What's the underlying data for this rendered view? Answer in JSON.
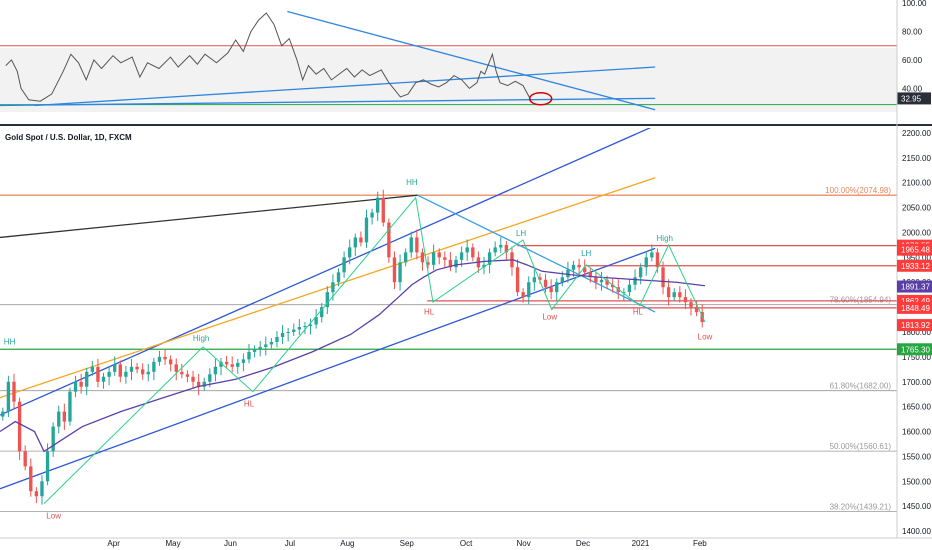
{
  "chart_data": [
    {
      "type": "line",
      "panel": "oscillator",
      "title": "",
      "ylim": [
        22,
        100
      ],
      "y_ticks": [
        {
          "label": "100.00",
          "v": 100
        },
        {
          "label": "80.00",
          "v": 80
        },
        {
          "label": "60.00",
          "v": 60
        },
        {
          "label": "40.00",
          "v": 40
        }
      ],
      "current_value": "32.95",
      "reference_levels": [
        70,
        30
      ],
      "series": [
        {
          "points": [
            [
              0,
              56
            ],
            [
              3,
              60
            ],
            [
              6,
              52
            ],
            [
              8,
              40
            ],
            [
              12,
              32
            ],
            [
              18,
              31
            ],
            [
              24,
              36
            ],
            [
              30,
              52
            ],
            [
              34,
              64
            ],
            [
              38,
              58
            ],
            [
              42,
              46
            ],
            [
              46,
              60
            ],
            [
              50,
              54
            ],
            [
              56,
              63
            ],
            [
              60,
              58
            ],
            [
              66,
              62
            ],
            [
              70,
              48
            ],
            [
              74,
              58
            ],
            [
              80,
              54
            ],
            [
              86,
              62
            ],
            [
              90,
              55
            ],
            [
              96,
              63
            ],
            [
              100,
              57
            ],
            [
              104,
              64
            ],
            [
              110,
              58
            ],
            [
              116,
              65
            ],
            [
              120,
              74
            ],
            [
              124,
              66
            ],
            [
              128,
              80
            ],
            [
              132,
              88
            ],
            [
              136,
              93
            ],
            [
              140,
              85
            ],
            [
              144,
              70
            ],
            [
              148,
              75
            ],
            [
              152,
              60
            ],
            [
              155,
              46
            ],
            [
              158,
              56
            ],
            [
              162,
              50
            ],
            [
              166,
              54
            ],
            [
              170,
              46
            ],
            [
              174,
              50
            ],
            [
              178,
              54
            ],
            [
              182,
              48
            ],
            [
              186,
              53
            ],
            [
              190,
              49
            ],
            [
              196,
              53
            ],
            [
              200,
              44
            ],
            [
              206,
              34
            ],
            [
              210,
              36
            ],
            [
              214,
              44
            ],
            [
              218,
              46
            ],
            [
              222,
              43
            ],
            [
              226,
              41
            ],
            [
              230,
              44
            ],
            [
              234,
              49
            ],
            [
              238,
              46
            ],
            [
              242,
              40
            ],
            [
              246,
              44
            ],
            [
              248,
              52
            ],
            [
              250,
              50
            ],
            [
              252,
              57
            ],
            [
              254,
              64
            ],
            [
              256,
              52
            ],
            [
              258,
              44
            ],
            [
              262,
              42
            ],
            [
              266,
              45
            ],
            [
              270,
              42
            ],
            [
              274,
              32
            ]
          ]
        }
      ],
      "trendlines": [
        {
          "x": [
            147,
            339
          ],
          "y": [
            94,
            25
          ]
        },
        {
          "x": [
            15,
            339
          ],
          "y": [
            28,
            55
          ]
        },
        {
          "x": [
            -3,
            339
          ],
          "y": [
            28,
            33
          ]
        }
      ],
      "annotation": "circle around the latest low reading"
    },
    {
      "type": "candlestick",
      "panel": "price",
      "title": "Gold Spot / U.S. Dollar, 1D, FXCM",
      "ylim": [
        1390,
        2210
      ],
      "x_ticks": [
        "Apr",
        "May",
        "Jun",
        "Jul",
        "Aug",
        "Sep",
        "Oct",
        "Nov",
        "Dec",
        "2021",
        "Feb"
      ],
      "y_ticks": [
        {
          "label": "2200.00",
          "v": 2200
        },
        {
          "label": "2150.00",
          "v": 2150
        },
        {
          "label": "2100.00",
          "v": 2100
        },
        {
          "label": "2050.00",
          "v": 2050
        },
        {
          "label": "2000.00",
          "v": 2000
        },
        {
          "label": "1950.00",
          "v": 1950
        },
        {
          "label": "1900.00",
          "v": 1900
        },
        {
          "label": "1850.00",
          "v": 1850
        },
        {
          "label": "1800.00",
          "v": 1800
        },
        {
          "label": "1750.00",
          "v": 1750
        },
        {
          "label": "1700.00",
          "v": 1700
        },
        {
          "label": "1650.00",
          "v": 1650
        },
        {
          "label": "1600.00",
          "v": 1600
        },
        {
          "label": "1550.00",
          "v": 1550
        },
        {
          "label": "1500.00",
          "v": 1500
        },
        {
          "label": "1450.00",
          "v": 1450
        },
        {
          "label": "1400.00",
          "v": 1400
        }
      ],
      "price_badges": [
        {
          "label": "1973.55",
          "v": 1973.55,
          "color": "#ff3b3b"
        },
        {
          "label": "1965.48",
          "v": 1965.48,
          "color": "#ff3b3b"
        },
        {
          "label": "1933.12",
          "v": 1933.12,
          "color": "#ff3b3b"
        },
        {
          "label": "1891.37",
          "v": 1891.37,
          "color": "#5b3fa8"
        },
        {
          "label": "1862.49",
          "v": 1862.49,
          "color": "#ff3b3b"
        },
        {
          "label": "1848.49",
          "v": 1848.49,
          "color": "#ff3b3b"
        },
        {
          "label": "1813.92",
          "v": 1813.92,
          "color": "#ff3b3b"
        },
        {
          "label": "1765.30",
          "v": 1765.3,
          "color": "#26a641"
        }
      ],
      "fibonacci": [
        {
          "label": "100.00%(2074.98)",
          "v": 2074.98,
          "color": "#e8865a"
        },
        {
          "label": "78.60%(1854.94)",
          "v": 1854.94,
          "color": "#999999"
        },
        {
          "label": "61.80%(1682.00)",
          "v": 1682,
          "color": "#999999"
        },
        {
          "label": "50.00%(1560.61)",
          "v": 1560.61,
          "color": "#999999"
        },
        {
          "label": "38.20%(1439.21)",
          "v": 1439.21,
          "color": "#999999"
        }
      ],
      "annotations": [
        {
          "text": "HH",
          "x": 2,
          "y": 1775,
          "color": "#26a69a"
        },
        {
          "text": "Low",
          "x": 25,
          "y": 1425,
          "color": "#e05050"
        },
        {
          "text": "High",
          "x": 102,
          "y": 1782,
          "color": "#26a69a"
        },
        {
          "text": "HL",
          "x": 127,
          "y": 1650,
          "color": "#e05050"
        },
        {
          "text": "HH",
          "x": 212,
          "y": 2095,
          "color": "#26a69a"
        },
        {
          "text": "HL",
          "x": 221,
          "y": 1835,
          "color": "#e05050"
        },
        {
          "text": "LH",
          "x": 269,
          "y": 1993,
          "color": "#26a69a"
        },
        {
          "text": "Low",
          "x": 284,
          "y": 1825,
          "color": "#e05050"
        },
        {
          "text": "LH",
          "x": 303,
          "y": 1953,
          "color": "#26a69a"
        },
        {
          "text": "HL",
          "x": 330,
          "y": 1835,
          "color": "#e05050"
        },
        {
          "text": "High",
          "x": 344,
          "y": 1983,
          "color": "#26a69a"
        },
        {
          "text": "Low",
          "x": 365,
          "y": 1785,
          "color": "#e05050"
        }
      ],
      "horizontal_levels": [
        {
          "v": 2074.98,
          "x0": -3,
          "color": "#e8865a"
        },
        {
          "v": 1973.55,
          "x0": 267,
          "color": "#e05050"
        },
        {
          "v": 1933.12,
          "x0": 303,
          "color": "#e05050"
        },
        {
          "v": 1862.49,
          "x0": 220,
          "color": "#e05050"
        },
        {
          "v": 1848.49,
          "x0": 285,
          "color": "#e05050"
        },
        {
          "v": 1765.3,
          "x0": -3,
          "color": "#26a641"
        }
      ],
      "trendlines": [
        {
          "x": [
            -3,
            215
          ],
          "y": [
            1990,
            2075
          ],
          "color": "#333333"
        },
        {
          "x": [
            -3,
            339
          ],
          "y": [
            1633,
            2215
          ],
          "color": "#2e57d6"
        },
        {
          "x": [
            -3,
            339
          ],
          "y": [
            1485,
            1968
          ],
          "color": "#2e57d6"
        },
        {
          "x": [
            -3,
            339
          ],
          "y": [
            1668,
            2110
          ],
          "color": "#f5a623"
        },
        {
          "x": [
            215,
            339
          ],
          "y": [
            2075,
            1840
          ],
          "color": "#3aa0e0"
        }
      ],
      "structure_path": {
        "color": "#2bd18a",
        "points": [
          [
            20,
            1455
          ],
          [
            103,
            1770
          ],
          [
            129,
            1680
          ],
          [
            214,
            2070
          ],
          [
            223,
            1860
          ],
          [
            270,
            1985
          ],
          [
            285,
            1845
          ],
          [
            303,
            1935
          ],
          [
            331,
            1853
          ],
          [
            346,
            1975
          ],
          [
            365,
            1820
          ]
        ]
      },
      "moving_average": {
        "color": "#5b3fa8",
        "points": [
          [
            -3,
            1600
          ],
          [
            5,
            1620
          ],
          [
            15,
            1600
          ],
          [
            20,
            1560
          ],
          [
            28,
            1580
          ],
          [
            40,
            1610
          ],
          [
            60,
            1640
          ],
          [
            80,
            1665
          ],
          [
            100,
            1690
          ],
          [
            120,
            1705
          ],
          [
            140,
            1730
          ],
          [
            160,
            1760
          ],
          [
            180,
            1795
          ],
          [
            195,
            1835
          ],
          [
            205,
            1870
          ],
          [
            212,
            1895
          ],
          [
            218,
            1910
          ],
          [
            225,
            1925
          ],
          [
            235,
            1935
          ],
          [
            250,
            1942
          ],
          [
            265,
            1945
          ],
          [
            272,
            1935
          ],
          [
            280,
            1922
          ],
          [
            295,
            1915
          ],
          [
            310,
            1910
          ],
          [
            330,
            1905
          ],
          [
            350,
            1900
          ],
          [
            365,
            1893
          ]
        ]
      },
      "candles_close": [
        1640,
        1700,
        1660,
        1560,
        1530,
        1480,
        1470,
        1500,
        1560,
        1610,
        1640,
        1620,
        1680,
        1700,
        1690,
        1720,
        1730,
        1700,
        1710,
        1720,
        1735,
        1710,
        1720,
        1730,
        1725,
        1715,
        1720,
        1740,
        1750,
        1745,
        1735,
        1720,
        1715,
        1710,
        1700,
        1690,
        1700,
        1715,
        1730,
        1740,
        1735,
        1730,
        1738,
        1745,
        1760,
        1765,
        1770,
        1775,
        1780,
        1790,
        1798,
        1800,
        1805,
        1810,
        1812,
        1815,
        1830,
        1850,
        1880,
        1900,
        1920,
        1950,
        1970,
        1990,
        1980,
        2030,
        2040,
        2070,
        2020,
        1950,
        1900,
        1940,
        1960,
        1990,
        1960,
        1940,
        1935,
        1960,
        1950,
        1945,
        1930,
        1945,
        1960,
        1970,
        1950,
        1930,
        1935,
        1960,
        1970,
        1975,
        1960,
        1930,
        1880,
        1870,
        1900,
        1910,
        1905,
        1890,
        1880,
        1900,
        1910,
        1925,
        1935,
        1930,
        1920,
        1910,
        1900,
        1905,
        1895,
        1890,
        1880,
        1880,
        1895,
        1910,
        1930,
        1950,
        1960,
        1930,
        1890,
        1870,
        1880,
        1870,
        1860,
        1850,
        1840,
        1820
      ],
      "day_span": [
        -3,
        365
      ]
    }
  ]
}
